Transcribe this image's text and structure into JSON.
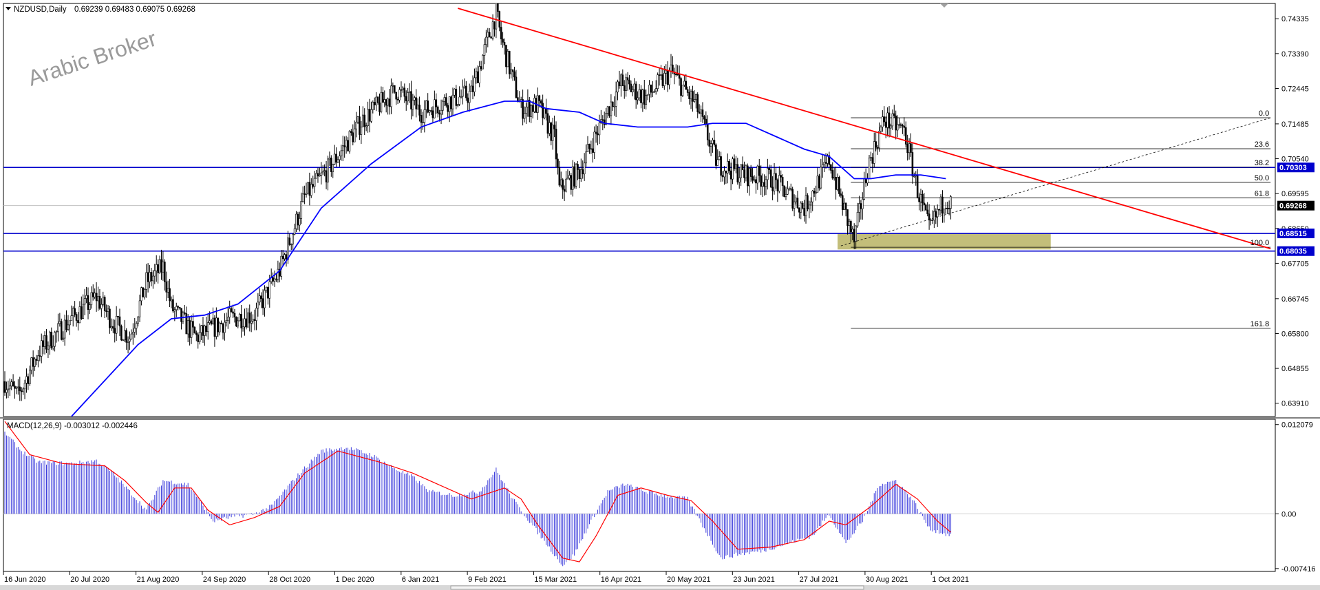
{
  "header": {
    "symbol_label": "NZDUSD,Daily",
    "ohlc_label": "0.69239 0.69483 0.69075 0.69268"
  },
  "watermark": "Arabic Broker",
  "macd": {
    "label": "MACD(12,26,9) -0.003012 -0.002446",
    "yticks": [
      "0.012079",
      "0.00",
      "-0.007416"
    ]
  },
  "colors": {
    "candle": "#000000",
    "ma": "#0000ff",
    "trendline": "#ff0000",
    "hline": "#0000cd",
    "fib": "#000000",
    "zone": "#bdb76b",
    "macd_hist": "#3c3cdc",
    "macd_signal": "#ff0000",
    "price_tag_bg": "#0000cd",
    "current_tag_bg": "#000000"
  },
  "chart_data": [
    {
      "type": "candlestick",
      "symbol": "NZDUSD",
      "timeframe": "Daily",
      "ylim": [
        0.6355,
        0.7475
      ],
      "yticks": [
        "0.74335",
        "0.73390",
        "0.72445",
        "0.71485",
        "0.70540",
        "0.69595",
        "0.68650",
        "0.67705",
        "0.66745",
        "0.65800",
        "0.64855",
        "0.63910"
      ],
      "xticks": [
        "16 Jun 2020",
        "20 Jul 2020",
        "21 Aug 2020",
        "24 Sep 2020",
        "28 Oct 2020",
        "1 Dec 2020",
        "6 Jan 2021",
        "9 Feb 2021",
        "15 Mar 2021",
        "16 Apr 2021",
        "20 May 2021",
        "23 Jun 2021",
        "27 Jul 2021",
        "30 Aug 2021",
        "1 Oct 2021"
      ],
      "price_path": [
        [
          0,
          0.645
        ],
        [
          8,
          0.641
        ],
        [
          20,
          0.653
        ],
        [
          40,
          0.662
        ],
        [
          55,
          0.668
        ],
        [
          65,
          0.661
        ],
        [
          75,
          0.657
        ],
        [
          85,
          0.672
        ],
        [
          95,
          0.676
        ],
        [
          100,
          0.665
        ],
        [
          115,
          0.657
        ],
        [
          135,
          0.662
        ],
        [
          150,
          0.663
        ],
        [
          165,
          0.675
        ],
        [
          180,
          0.695
        ],
        [
          195,
          0.703
        ],
        [
          215,
          0.716
        ],
        [
          235,
          0.724
        ],
        [
          250,
          0.718
        ],
        [
          265,
          0.721
        ],
        [
          280,
          0.723
        ],
        [
          295,
          0.745
        ],
        [
          298,
          0.738
        ],
        [
          310,
          0.719
        ],
        [
          320,
          0.72
        ],
        [
          330,
          0.711
        ],
        [
          333,
          0.697
        ],
        [
          345,
          0.702
        ],
        [
          355,
          0.712
        ],
        [
          370,
          0.726
        ],
        [
          385,
          0.722
        ],
        [
          400,
          0.729
        ],
        [
          415,
          0.72
        ],
        [
          428,
          0.704
        ],
        [
          445,
          0.701
        ],
        [
          460,
          0.7
        ],
        [
          480,
          0.692
        ],
        [
          495,
          0.705
        ],
        [
          505,
          0.69
        ],
        [
          510,
          0.683
        ],
        [
          518,
          0.703
        ],
        [
          528,
          0.716
        ],
        [
          540,
          0.713
        ],
        [
          548,
          0.697
        ],
        [
          555,
          0.686
        ],
        [
          565,
          0.695
        ],
        [
          568,
          0.693
        ]
      ],
      "moving_average": [
        [
          40,
          0.6355
        ],
        [
          80,
          0.655
        ],
        [
          100,
          0.662
        ],
        [
          120,
          0.663
        ],
        [
          140,
          0.666
        ],
        [
          165,
          0.675
        ],
        [
          190,
          0.692
        ],
        [
          220,
          0.704
        ],
        [
          250,
          0.714
        ],
        [
          275,
          0.718
        ],
        [
          300,
          0.721
        ],
        [
          315,
          0.721
        ],
        [
          325,
          0.719
        ],
        [
          345,
          0.718
        ],
        [
          360,
          0.715
        ],
        [
          380,
          0.714
        ],
        [
          395,
          0.714
        ],
        [
          410,
          0.714
        ],
        [
          425,
          0.715
        ],
        [
          445,
          0.715
        ],
        [
          465,
          0.711
        ],
        [
          480,
          0.708
        ],
        [
          495,
          0.706
        ],
        [
          510,
          0.7
        ],
        [
          520,
          0.7
        ],
        [
          535,
          0.701
        ],
        [
          550,
          0.701
        ],
        [
          565,
          0.7
        ]
      ],
      "trendline": {
        "from": [
          272,
          0.7462
        ],
        "to": [
          760,
          0.681
        ]
      },
      "horizontal_levels": [
        {
          "price": 0.70303,
          "label": "0.70303"
        },
        {
          "price": 0.68515,
          "label": "0.68515"
        },
        {
          "price": 0.68035,
          "label": "0.68035"
        }
      ],
      "fibonacci": [
        {
          "level": "0.0",
          "price": 0.7165
        },
        {
          "level": "23.6",
          "price": 0.7081
        },
        {
          "level": "38.2",
          "price": 0.7031
        },
        {
          "level": "50.0",
          "price": 0.699
        },
        {
          "level": "61.8",
          "price": 0.6948
        },
        {
          "level": "100.0",
          "price": 0.6814
        },
        {
          "level": "161.8",
          "price": 0.6594
        }
      ],
      "fib_start_index": 508,
      "fib_end_index": 760,
      "zone": {
        "from_index": 500,
        "to_index": 628,
        "price_high": 0.6851,
        "price_low": 0.6808
      },
      "current_price": {
        "price": 0.69268,
        "label": "0.69268"
      }
    },
    {
      "type": "bar+line",
      "name": "MACD(12,26,9)",
      "ylim": [
        -0.0078,
        0.0128
      ],
      "histogram_path": [
        [
          0,
          0.011
        ],
        [
          10,
          0.0085
        ],
        [
          20,
          0.007
        ],
        [
          40,
          0.0068
        ],
        [
          55,
          0.0072
        ],
        [
          65,
          0.0055
        ],
        [
          75,
          0.003
        ],
        [
          85,
          0.0005
        ],
        [
          95,
          0.0045
        ],
        [
          110,
          0.004
        ],
        [
          118,
          0.0015
        ],
        [
          125,
          -0.001
        ],
        [
          135,
          -0.0005
        ],
        [
          150,
          0.0
        ],
        [
          160,
          0.001
        ],
        [
          175,
          0.005
        ],
        [
          190,
          0.0085
        ],
        [
          205,
          0.009
        ],
        [
          220,
          0.008
        ],
        [
          235,
          0.006
        ],
        [
          245,
          0.005
        ],
        [
          255,
          0.003
        ],
        [
          270,
          0.0025
        ],
        [
          285,
          0.003
        ],
        [
          295,
          0.006
        ],
        [
          305,
          0.002
        ],
        [
          315,
          -0.001
        ],
        [
          325,
          -0.004
        ],
        [
          335,
          -0.007
        ],
        [
          342,
          -0.0055
        ],
        [
          352,
          -0.001
        ],
        [
          362,
          0.003
        ],
        [
          372,
          0.004
        ],
        [
          385,
          0.003
        ],
        [
          395,
          0.0025
        ],
        [
          410,
          0.002
        ],
        [
          420,
          -0.002
        ],
        [
          430,
          -0.006
        ],
        [
          440,
          -0.0055
        ],
        [
          455,
          -0.005
        ],
        [
          470,
          -0.004
        ],
        [
          485,
          -0.003
        ],
        [
          495,
          0.0
        ],
        [
          505,
          -0.004
        ],
        [
          515,
          -0.001
        ],
        [
          525,
          0.004
        ],
        [
          535,
          0.0045
        ],
        [
          545,
          0.002
        ],
        [
          555,
          -0.002
        ],
        [
          568,
          -0.003
        ]
      ],
      "signal_path": [
        [
          0,
          0.0125
        ],
        [
          15,
          0.008
        ],
        [
          35,
          0.0068
        ],
        [
          60,
          0.0065
        ],
        [
          72,
          0.0045
        ],
        [
          85,
          0.0015
        ],
        [
          92,
          0.0002
        ],
        [
          102,
          0.0035
        ],
        [
          112,
          0.0035
        ],
        [
          122,
          0.0005
        ],
        [
          135,
          -0.0015
        ],
        [
          150,
          -0.0005
        ],
        [
          165,
          0.001
        ],
        [
          180,
          0.0055
        ],
        [
          200,
          0.0085
        ],
        [
          225,
          0.007
        ],
        [
          245,
          0.0055
        ],
        [
          260,
          0.004
        ],
        [
          280,
          0.002
        ],
        [
          300,
          0.0035
        ],
        [
          310,
          0.002
        ],
        [
          320,
          -0.0015
        ],
        [
          335,
          -0.006
        ],
        [
          345,
          -0.0065
        ],
        [
          355,
          -0.003
        ],
        [
          368,
          0.0025
        ],
        [
          382,
          0.0035
        ],
        [
          398,
          0.0025
        ],
        [
          412,
          0.0018
        ],
        [
          425,
          -0.001
        ],
        [
          440,
          -0.0048
        ],
        [
          460,
          -0.0045
        ],
        [
          480,
          -0.0035
        ],
        [
          495,
          -0.001
        ],
        [
          505,
          -0.0015
        ],
        [
          520,
          0.001
        ],
        [
          535,
          0.004
        ],
        [
          548,
          0.002
        ],
        [
          560,
          -0.001
        ],
        [
          568,
          -0.0025
        ]
      ]
    }
  ]
}
